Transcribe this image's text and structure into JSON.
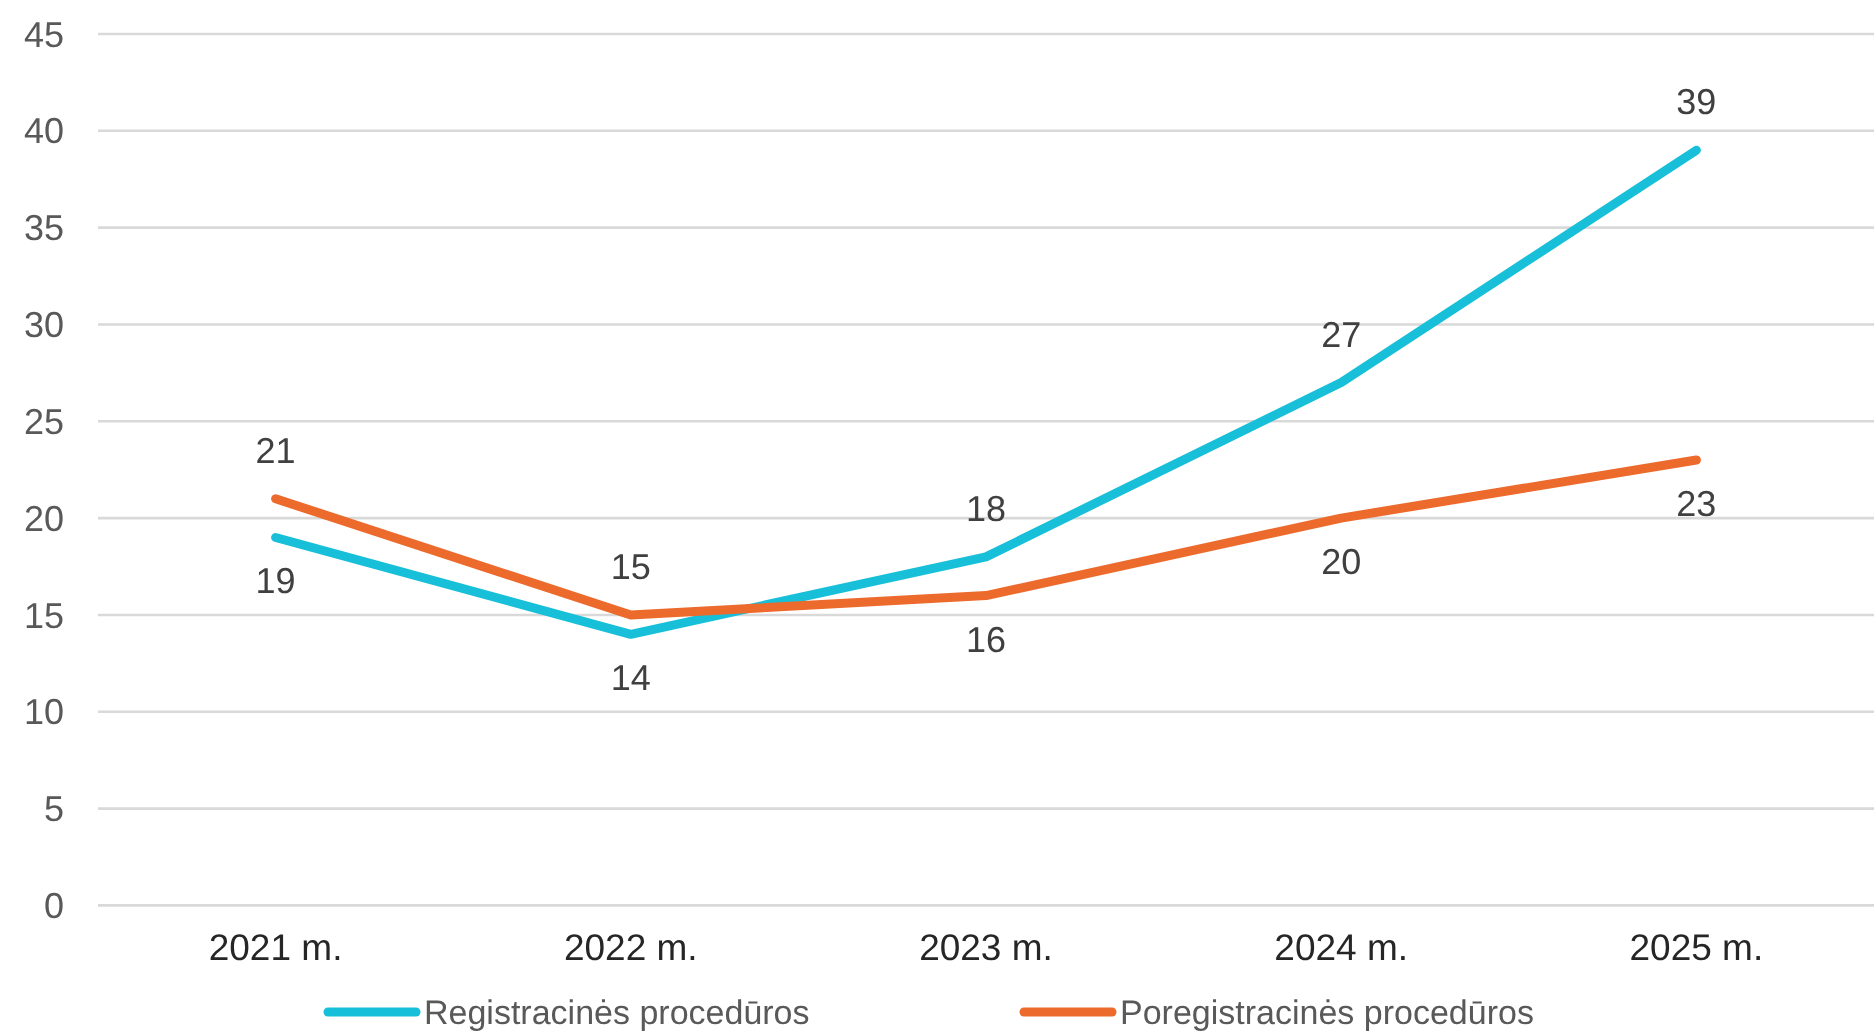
{
  "chart_data": {
    "type": "line",
    "categories": [
      "2021 m.",
      "2022 m.",
      "2023 m.",
      "2024 m.",
      "2025 m."
    ],
    "series": [
      {
        "name": "Registracinės procedūros",
        "color": "#17bfd8",
        "values": [
          19,
          14,
          18,
          27,
          39
        ]
      },
      {
        "name": "Poregistracinės procedūros",
        "color": "#ec6a2c",
        "values": [
          21,
          15,
          16,
          20,
          23
        ]
      }
    ],
    "ylim": [
      0,
      45
    ],
    "yticks": [
      0,
      5,
      10,
      15,
      20,
      25,
      30,
      35,
      40,
      45
    ],
    "grid": "y",
    "legend": "bottom",
    "data_labels": true,
    "line_style": "solid"
  }
}
